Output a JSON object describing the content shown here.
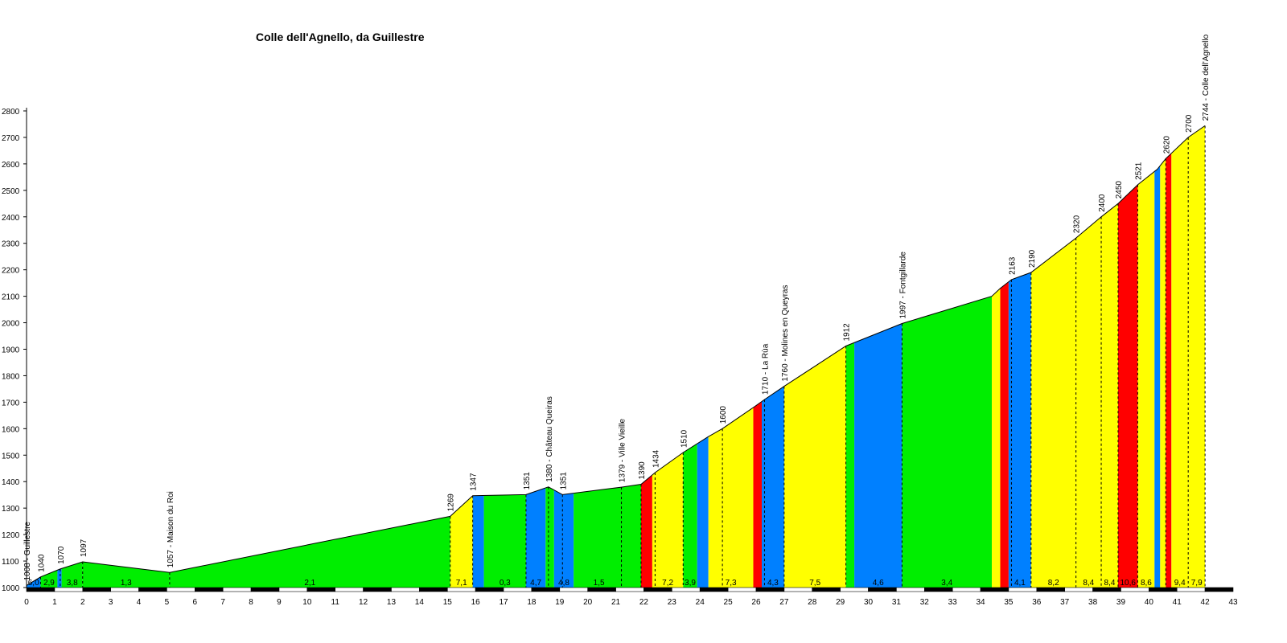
{
  "chart_data": {
    "type": "area",
    "title": "Colle dell'Agnello, da Guillestre",
    "xlabel": "",
    "ylabel": "",
    "xlim": [
      0,
      43
    ],
    "ylim": [
      1000,
      2800
    ],
    "y_ticks": [
      1000,
      1100,
      1200,
      1300,
      1400,
      1500,
      1600,
      1700,
      1800,
      1900,
      2000,
      2100,
      2200,
      2300,
      2400,
      2500,
      2600,
      2700,
      2800
    ],
    "x_ticks": [
      0,
      1,
      2,
      3,
      4,
      5,
      6,
      7,
      8,
      9,
      10,
      11,
      12,
      13,
      14,
      15,
      16,
      17,
      18,
      19,
      20,
      21,
      22,
      23,
      24,
      25,
      26,
      27,
      28,
      29,
      30,
      31,
      32,
      33,
      34,
      35,
      36,
      37,
      38,
      39,
      40,
      41,
      42,
      43
    ],
    "grade_colors": {
      "yellow": "#ffff00",
      "green": "#00ee00",
      "blue": "#0080ff",
      "red": "#ff0000"
    },
    "profile": [
      [
        0,
        1008
      ],
      [
        0.5,
        1040
      ],
      [
        1.2,
        1070
      ],
      [
        2.0,
        1097
      ],
      [
        5.1,
        1057
      ],
      [
        15.1,
        1269
      ],
      [
        15.9,
        1347
      ],
      [
        17.8,
        1351
      ],
      [
        18.6,
        1380
      ],
      [
        19.1,
        1351
      ],
      [
        21.2,
        1379
      ],
      [
        21.9,
        1390
      ],
      [
        22.4,
        1434
      ],
      [
        23.4,
        1510
      ],
      [
        24.3,
        1570
      ],
      [
        24.8,
        1600
      ],
      [
        25.9,
        1680
      ],
      [
        26.3,
        1710
      ],
      [
        27.0,
        1760
      ],
      [
        29.2,
        1912
      ],
      [
        31.2,
        1997
      ],
      [
        34.4,
        2100
      ],
      [
        34.7,
        2130
      ],
      [
        35.1,
        2163
      ],
      [
        35.8,
        2190
      ],
      [
        37.4,
        2320
      ],
      [
        38.3,
        2400
      ],
      [
        38.9,
        2450
      ],
      [
        39.6,
        2521
      ],
      [
        40.3,
        2580
      ],
      [
        40.6,
        2620
      ],
      [
        41.4,
        2700
      ],
      [
        42.0,
        2744
      ]
    ],
    "segments": [
      {
        "x0": 0,
        "x1": 0.5,
        "grade": "6,0",
        "color": "blue"
      },
      {
        "x0": 0.5,
        "x1": 1.1,
        "grade": "2,9",
        "color": "green"
      },
      {
        "x0": 1.1,
        "x1": 1.25,
        "grade": "",
        "color": "blue"
      },
      {
        "x0": 1.25,
        "x1": 2.0,
        "grade": "3,8",
        "color": "green"
      },
      {
        "x0": 2.0,
        "x1": 5.1,
        "grade": "1,3",
        "color": "green"
      },
      {
        "x0": 5.1,
        "x1": 15.1,
        "grade": "2,1",
        "color": "green"
      },
      {
        "x0": 15.1,
        "x1": 15.9,
        "grade": "7,1",
        "color": "yellow"
      },
      {
        "x0": 15.9,
        "x1": 16.3,
        "grade": "",
        "color": "blue"
      },
      {
        "x0": 16.3,
        "x1": 17.8,
        "grade": "0,3",
        "color": "green"
      },
      {
        "x0": 17.8,
        "x1": 18.5,
        "grade": "4,7",
        "color": "blue"
      },
      {
        "x0": 18.5,
        "x1": 18.8,
        "grade": "",
        "color": "green"
      },
      {
        "x0": 18.8,
        "x1": 19.5,
        "grade": "4,8",
        "color": "blue"
      },
      {
        "x0": 19.5,
        "x1": 21.3,
        "grade": "1,5",
        "color": "green"
      },
      {
        "x0": 21.3,
        "x1": 21.9,
        "grade": "",
        "color": "green"
      },
      {
        "x0": 21.9,
        "x1": 22.3,
        "grade": "",
        "color": "red"
      },
      {
        "x0": 22.3,
        "x1": 23.4,
        "grade": "7,2",
        "color": "yellow"
      },
      {
        "x0": 23.4,
        "x1": 23.9,
        "grade": "3,9",
        "color": "green"
      },
      {
        "x0": 23.9,
        "x1": 24.3,
        "grade": "",
        "color": "blue"
      },
      {
        "x0": 24.3,
        "x1": 25.9,
        "grade": "7,3",
        "color": "yellow"
      },
      {
        "x0": 25.9,
        "x1": 26.2,
        "grade": "",
        "color": "red"
      },
      {
        "x0": 26.2,
        "x1": 27.0,
        "grade": "4,3",
        "color": "blue"
      },
      {
        "x0": 27.0,
        "x1": 29.2,
        "grade": "7,5",
        "color": "yellow"
      },
      {
        "x0": 29.2,
        "x1": 29.5,
        "grade": "",
        "color": "green"
      },
      {
        "x0": 29.5,
        "x1": 31.2,
        "grade": "4,6",
        "color": "blue"
      },
      {
        "x0": 31.2,
        "x1": 34.4,
        "grade": "3,4",
        "color": "green"
      },
      {
        "x0": 34.4,
        "x1": 34.7,
        "grade": "",
        "color": "yellow"
      },
      {
        "x0": 34.7,
        "x1": 35.0,
        "grade": "",
        "color": "red"
      },
      {
        "x0": 35.0,
        "x1": 35.8,
        "grade": "4,1",
        "color": "blue"
      },
      {
        "x0": 35.8,
        "x1": 37.4,
        "grade": "8,2",
        "color": "yellow"
      },
      {
        "x0": 37.4,
        "x1": 38.3,
        "grade": "8,4",
        "color": "yellow"
      },
      {
        "x0": 38.3,
        "x1": 38.9,
        "grade": "8,4",
        "color": "yellow"
      },
      {
        "x0": 38.9,
        "x1": 39.6,
        "grade": "10,6",
        "color": "red"
      },
      {
        "x0": 39.6,
        "x1": 40.2,
        "grade": "8,6",
        "color": "yellow"
      },
      {
        "x0": 40.2,
        "x1": 40.4,
        "grade": "",
        "color": "blue"
      },
      {
        "x0": 40.4,
        "x1": 40.6,
        "grade": "",
        "color": "yellow"
      },
      {
        "x0": 40.6,
        "x1": 40.8,
        "grade": "",
        "color": "red"
      },
      {
        "x0": 40.8,
        "x1": 41.4,
        "grade": "9,4",
        "color": "yellow"
      },
      {
        "x0": 41.4,
        "x1": 42.0,
        "grade": "7,9",
        "color": "yellow"
      }
    ],
    "points": [
      {
        "x": 0,
        "y": 1008,
        "label": "1008 - Guillestre"
      },
      {
        "x": 0.5,
        "y": 1040,
        "label": "1040"
      },
      {
        "x": 1.2,
        "y": 1070,
        "label": "1070"
      },
      {
        "x": 2.0,
        "y": 1097,
        "label": "1097"
      },
      {
        "x": 5.1,
        "y": 1057,
        "label": "1057 - Maison du Roi"
      },
      {
        "x": 15.1,
        "y": 1269,
        "label": "1269"
      },
      {
        "x": 15.9,
        "y": 1347,
        "label": "1347"
      },
      {
        "x": 17.8,
        "y": 1351,
        "label": "1351"
      },
      {
        "x": 18.6,
        "y": 1380,
        "label": "1380 - Château Queiras"
      },
      {
        "x": 19.1,
        "y": 1351,
        "label": "1351"
      },
      {
        "x": 21.2,
        "y": 1379,
        "label": "1379 - Ville Vieille"
      },
      {
        "x": 21.9,
        "y": 1390,
        "label": "1390"
      },
      {
        "x": 22.4,
        "y": 1434,
        "label": "1434"
      },
      {
        "x": 23.4,
        "y": 1510,
        "label": "1510"
      },
      {
        "x": 24.8,
        "y": 1600,
        "label": "1600"
      },
      {
        "x": 26.3,
        "y": 1710,
        "label": "1710 - La Rùa"
      },
      {
        "x": 27.0,
        "y": 1760,
        "label": "1760 - Molines en Queyras"
      },
      {
        "x": 29.2,
        "y": 1912,
        "label": "1912"
      },
      {
        "x": 31.2,
        "y": 1997,
        "label": "1997 - Fontgillarde"
      },
      {
        "x": 35.1,
        "y": 2163,
        "label": "2163"
      },
      {
        "x": 35.8,
        "y": 2190,
        "label": "2190"
      },
      {
        "x": 37.4,
        "y": 2320,
        "label": "2320"
      },
      {
        "x": 38.3,
        "y": 2400,
        "label": "2400"
      },
      {
        "x": 38.9,
        "y": 2450,
        "label": "2450"
      },
      {
        "x": 39.6,
        "y": 2521,
        "label": "2521"
      },
      {
        "x": 40.6,
        "y": 2620,
        "label": "2620"
      },
      {
        "x": 41.4,
        "y": 2700,
        "label": "2700"
      },
      {
        "x": 42.0,
        "y": 2744,
        "label": "2744 - Colle dell'Agnello"
      }
    ]
  }
}
